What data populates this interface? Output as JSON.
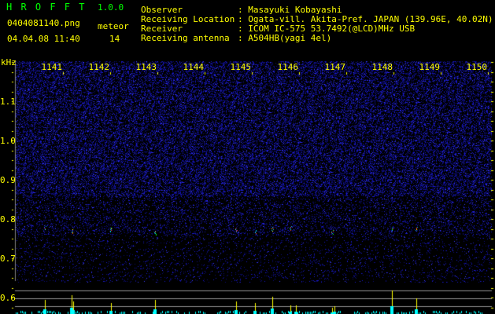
{
  "app": {
    "name": "H R O F F T",
    "version": "1.0.0"
  },
  "file": {
    "filename": "0404081140.png",
    "datetime": "04.04.08 11:40",
    "meteor_label": "meteor",
    "meteor_count": "14"
  },
  "info": [
    {
      "label": "Observer",
      "value": ": Masayuki Kobayashi"
    },
    {
      "label": "Receiving Location",
      "value": ": Ogata-vill. Akita-Pref. JAPAN (139.96E, 40.02N)"
    },
    {
      "label": "Receiver",
      "value": ": ICOM IC-575 53.7492(@LCD)MHz USB"
    },
    {
      "label": "Receiving antenna",
      "value": ": A504HB(yagi 4el)"
    }
  ],
  "axes": {
    "x_unit": "kHz",
    "x_ticks": [
      "1141",
      "1142",
      "1143",
      "1144",
      "1145",
      "1146",
      "1147",
      "1148",
      "1149",
      "1150"
    ],
    "y_ticks": [
      "1.1",
      "1.0",
      "0.9",
      "0.8",
      "0.7",
      "0.6"
    ]
  },
  "colors": {
    "text": "#ffff00",
    "title": "#00ff00",
    "noise": "#1a1aff",
    "histogram_a": "#00ffff",
    "histogram_b": "#ffff00"
  }
}
